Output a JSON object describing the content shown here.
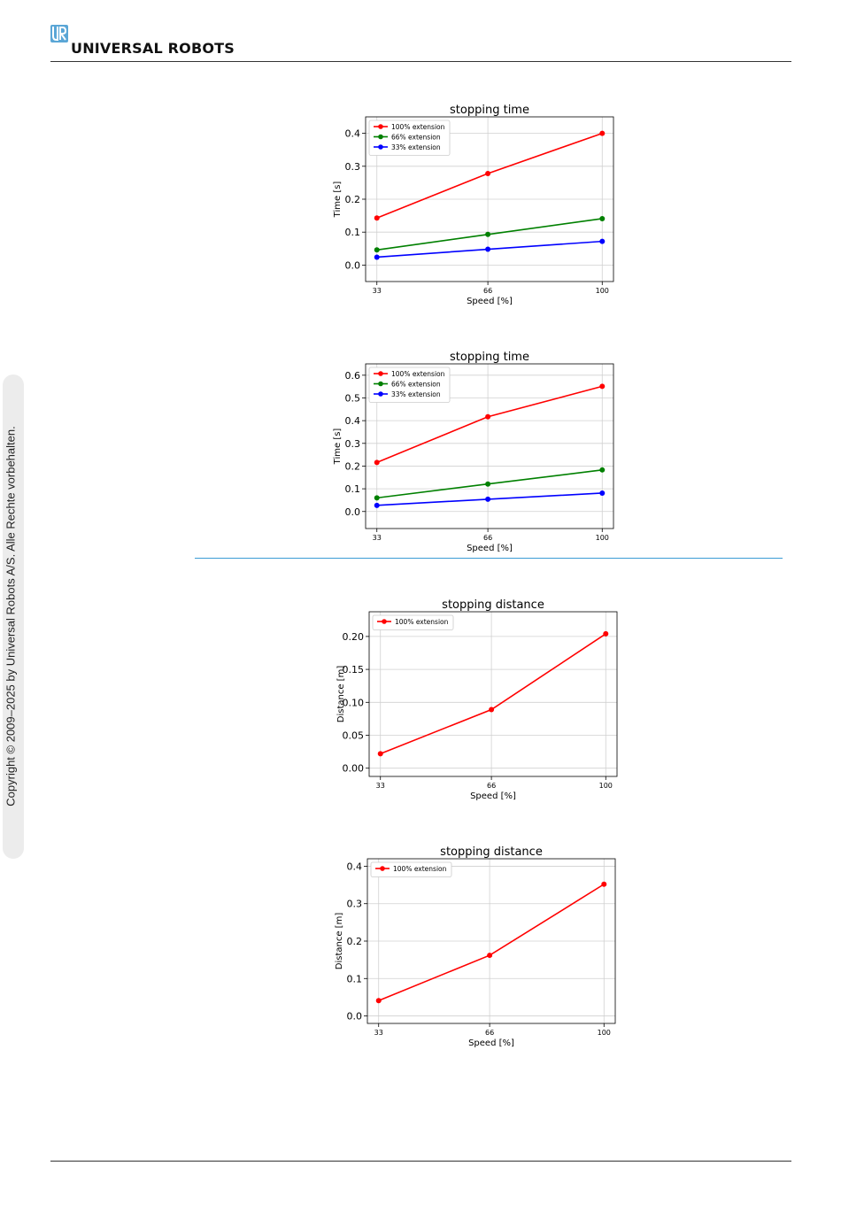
{
  "header": {
    "logo_text": "UNIVERSAL ROBOTS",
    "logo_mark_color": "#5aa6d6"
  },
  "sidebar": {
    "copyright": "Copyright © 2009–2025 by Universal Robots A/S. Alle Rechte vorbehalten."
  },
  "chart_data": [
    {
      "type": "line",
      "title": "stopping time",
      "xlabel": "Speed [%]",
      "ylabel": "Time [s]",
      "x": [
        33,
        66,
        100
      ],
      "ylim": [
        -0.05,
        0.45
      ],
      "yticks": [
        "0.0",
        "0.1",
        "0.2",
        "0.3",
        "0.4"
      ],
      "ytick_values": [
        0,
        0.1,
        0.2,
        0.3,
        0.4
      ],
      "grid": true,
      "legend": "top-left",
      "series": [
        {
          "name": "100% extension",
          "color": "#ff0000",
          "values": [
            0.143,
            0.278,
            0.4
          ]
        },
        {
          "name": "66% extension",
          "color": "#008000",
          "values": [
            0.046,
            0.093,
            0.141
          ]
        },
        {
          "name": "33% extension",
          "color": "#0000ff",
          "values": [
            0.024,
            0.048,
            0.072
          ]
        }
      ]
    },
    {
      "type": "line",
      "title": "stopping time",
      "xlabel": "Speed [%]",
      "ylabel": "Time [s]",
      "x": [
        33,
        66,
        100
      ],
      "ylim": [
        -0.075,
        0.65
      ],
      "yticks": [
        "0.0",
        "0.1",
        "0.2",
        "0.3",
        "0.4",
        "0.5",
        "0.6"
      ],
      "ytick_values": [
        0,
        0.1,
        0.2,
        0.3,
        0.4,
        0.5,
        0.6
      ],
      "grid": true,
      "legend": "top-left",
      "series": [
        {
          "name": "100% extension",
          "color": "#ff0000",
          "values": [
            0.216,
            0.417,
            0.551
          ]
        },
        {
          "name": "66% extension",
          "color": "#008000",
          "values": [
            0.06,
            0.121,
            0.183
          ]
        },
        {
          "name": "33% extension",
          "color": "#0000ff",
          "values": [
            0.027,
            0.054,
            0.081
          ]
        }
      ]
    },
    {
      "type": "line",
      "title": "stopping distance",
      "xlabel": "Speed [%]",
      "ylabel": "Distance [m]",
      "x": [
        33,
        66,
        100
      ],
      "ylim": [
        -0.0125,
        0.2375
      ],
      "yticks": [
        "0.00",
        "0.05",
        "0.10",
        "0.15",
        "0.20"
      ],
      "ytick_values": [
        0,
        0.05,
        0.1,
        0.15,
        0.2
      ],
      "grid": true,
      "legend": "top-left",
      "series": [
        {
          "name": "100% extension",
          "color": "#ff0000",
          "values": [
            0.022,
            0.089,
            0.204
          ]
        }
      ]
    },
    {
      "type": "line",
      "title": "stopping distance",
      "xlabel": "Speed [%]",
      "ylabel": "Distance [m]",
      "x": [
        33,
        66,
        100
      ],
      "ylim": [
        -0.02,
        0.42
      ],
      "yticks": [
        "0.0",
        "0.1",
        "0.2",
        "0.3",
        "0.4"
      ],
      "ytick_values": [
        0,
        0.1,
        0.2,
        0.3,
        0.4
      ],
      "grid": true,
      "legend": "top-left",
      "series": [
        {
          "name": "100% extension",
          "color": "#ff0000",
          "values": [
            0.041,
            0.162,
            0.352
          ]
        }
      ]
    }
  ]
}
